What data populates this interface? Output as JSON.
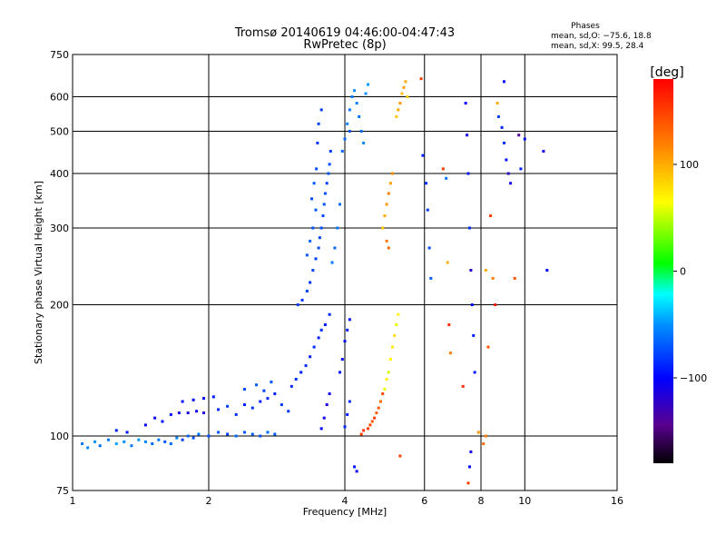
{
  "chart_data": {
    "type": "scatter",
    "title": "Tromsø 20140619 04:46:00-04:47:43",
    "subtitle": "RwPretec (8p)",
    "xlabel": "Frequency [MHz]",
    "ylabel": "Stationary phase Virtual Height [km]",
    "x_scale": "log",
    "y_scale": "log",
    "xlim": [
      1,
      16
    ],
    "ylim": [
      75,
      750
    ],
    "x_ticks": [
      1,
      2,
      4,
      6,
      8,
      10,
      16
    ],
    "y_ticks": [
      75,
      100,
      200,
      300,
      400,
      500,
      600,
      750
    ],
    "grid": true,
    "phase_stats": {
      "title": "Phases",
      "line_o": "mean, sd,O: −75.6, 18.8",
      "line_x": "mean, sd,X:  99.5, 28.4"
    },
    "colorbar": {
      "label": "[deg]",
      "ticks": [
        "100",
        "0",
        "−100"
      ],
      "tick_values": [
        100,
        0,
        -100
      ],
      "range": [
        -180,
        180
      ]
    },
    "series": [
      {
        "points": [
          [
            1.05,
            96,
            -60
          ],
          [
            1.08,
            94,
            -55
          ],
          [
            1.12,
            97,
            -50
          ],
          [
            1.15,
            95,
            -62
          ],
          [
            1.2,
            98,
            -58
          ],
          [
            1.25,
            96,
            -45
          ],
          [
            1.3,
            97,
            -52
          ],
          [
            1.35,
            95,
            -60
          ],
          [
            1.4,
            98,
            -48
          ],
          [
            1.45,
            97,
            -55
          ],
          [
            1.5,
            96,
            -65
          ],
          [
            1.55,
            98,
            -58
          ],
          [
            1.6,
            97,
            -70
          ],
          [
            1.65,
            96,
            -62
          ],
          [
            1.7,
            99,
            -55
          ],
          [
            1.75,
            98,
            -80
          ],
          [
            1.8,
            100,
            -66
          ],
          [
            1.85,
            99,
            -72
          ],
          [
            1.9,
            101,
            -60
          ],
          [
            2.0,
            100,
            -75
          ],
          [
            2.1,
            102,
            -68
          ],
          [
            2.2,
            101,
            -80
          ],
          [
            2.3,
            100,
            -64
          ],
          [
            2.4,
            102,
            -70
          ],
          [
            2.5,
            101,
            -66
          ],
          [
            2.6,
            100,
            -74
          ],
          [
            2.7,
            102,
            -62
          ],
          [
            2.8,
            101,
            -70
          ],
          [
            1.25,
            103,
            -90
          ],
          [
            1.32,
            102,
            -95
          ],
          [
            1.45,
            106,
            -100
          ],
          [
            1.52,
            110,
            -105
          ],
          [
            1.58,
            108,
            -98
          ],
          [
            1.65,
            112,
            -102
          ],
          [
            1.72,
            113,
            -110
          ],
          [
            1.8,
            113,
            -112
          ],
          [
            1.88,
            114,
            -108
          ],
          [
            1.95,
            113,
            -115
          ],
          [
            1.75,
            120,
            -95
          ],
          [
            1.85,
            121,
            -98
          ],
          [
            1.95,
            122,
            -100
          ],
          [
            2.05,
            123,
            -92
          ],
          [
            2.1,
            115,
            -88
          ],
          [
            2.2,
            117,
            -80
          ],
          [
            2.3,
            112,
            -85
          ],
          [
            2.4,
            118,
            -90
          ],
          [
            2.5,
            116,
            -84
          ],
          [
            2.6,
            120,
            -92
          ],
          [
            2.7,
            122,
            -86
          ],
          [
            2.8,
            125,
            -90
          ],
          [
            2.9,
            118,
            -80
          ],
          [
            3.0,
            114,
            -82
          ],
          [
            2.4,
            128,
            -75
          ],
          [
            2.55,
            131,
            -72
          ],
          [
            2.65,
            127,
            -78
          ],
          [
            2.75,
            133,
            -70
          ],
          [
            3.05,
            130,
            -88
          ],
          [
            3.12,
            135,
            -85
          ],
          [
            3.2,
            140,
            -92
          ],
          [
            3.28,
            145,
            -86
          ],
          [
            3.35,
            152,
            -90
          ],
          [
            3.42,
            160,
            -84
          ],
          [
            3.5,
            168,
            -90
          ],
          [
            3.55,
            175,
            -86
          ],
          [
            3.62,
            180,
            -92
          ],
          [
            3.7,
            190,
            -88
          ],
          [
            3.15,
            200,
            -80
          ],
          [
            3.22,
            205,
            -84
          ],
          [
            3.3,
            215,
            -78
          ],
          [
            3.35,
            225,
            -82
          ],
          [
            3.4,
            240,
            -76
          ],
          [
            3.45,
            255,
            -80
          ],
          [
            3.5,
            270,
            -74
          ],
          [
            3.52,
            285,
            -78
          ],
          [
            3.55,
            300,
            -72
          ],
          [
            3.58,
            320,
            -76
          ],
          [
            3.6,
            340,
            -70
          ],
          [
            3.62,
            360,
            -74
          ],
          [
            3.65,
            380,
            -78
          ],
          [
            3.68,
            400,
            -72
          ],
          [
            3.7,
            420,
            -76
          ],
          [
            3.72,
            450,
            -80
          ],
          [
            3.48,
            470,
            -82
          ],
          [
            3.5,
            520,
            -78
          ],
          [
            3.55,
            560,
            -80
          ],
          [
            3.3,
            260,
            -70
          ],
          [
            3.35,
            280,
            -66
          ],
          [
            3.4,
            300,
            -72
          ],
          [
            3.45,
            330,
            -70
          ],
          [
            3.38,
            350,
            -75
          ],
          [
            3.42,
            380,
            -68
          ],
          [
            3.46,
            410,
            -72
          ],
          [
            3.75,
            250,
            -60
          ],
          [
            3.8,
            270,
            -64
          ],
          [
            3.85,
            300,
            -58
          ],
          [
            3.9,
            340,
            -62
          ],
          [
            4.05,
            520,
            -55
          ],
          [
            4.1,
            560,
            -60
          ],
          [
            4.15,
            600,
            -58
          ],
          [
            4.2,
            620,
            -52
          ],
          [
            4.25,
            580,
            -56
          ],
          [
            4.3,
            540,
            -60
          ],
          [
            4.35,
            500,
            -62
          ],
          [
            4.4,
            470,
            -54
          ],
          [
            4.45,
            610,
            -50
          ],
          [
            4.5,
            640,
            -48
          ],
          [
            3.95,
            450,
            -65
          ],
          [
            4.0,
            480,
            -62
          ],
          [
            4.1,
            500,
            -70
          ],
          [
            3.9,
            140,
            -95
          ],
          [
            3.95,
            150,
            -98
          ],
          [
            4.0,
            165,
            -100
          ],
          [
            4.05,
            175,
            -92
          ],
          [
            4.1,
            185,
            -96
          ],
          [
            4.0,
            105,
            -88
          ],
          [
            4.05,
            112,
            -92
          ],
          [
            4.1,
            120,
            -86
          ],
          [
            3.7,
            125,
            -108
          ],
          [
            3.65,
            118,
            -112
          ],
          [
            3.6,
            110,
            -105
          ],
          [
            3.55,
            104,
            -100
          ],
          [
            4.5,
            104,
            150
          ],
          [
            4.55,
            106,
            145
          ],
          [
            4.6,
            108,
            140
          ],
          [
            4.65,
            110,
            150
          ],
          [
            4.7,
            113,
            135
          ],
          [
            4.75,
            116,
            140
          ],
          [
            4.8,
            120,
            130
          ],
          [
            4.85,
            125,
            145
          ],
          [
            4.4,
            103,
            155
          ],
          [
            4.35,
            101,
            150
          ],
          [
            4.9,
            128,
            60
          ],
          [
            4.95,
            135,
            70
          ],
          [
            5.0,
            140,
            55
          ],
          [
            5.05,
            150,
            65
          ],
          [
            5.1,
            160,
            75
          ],
          [
            5.15,
            170,
            80
          ],
          [
            5.2,
            180,
            60
          ],
          [
            5.25,
            190,
            70
          ],
          [
            4.85,
            300,
            90
          ],
          [
            4.9,
            320,
            100
          ],
          [
            4.95,
            340,
            110
          ],
          [
            5.0,
            360,
            120
          ],
          [
            5.05,
            380,
            105
          ],
          [
            5.1,
            400,
            115
          ],
          [
            4.95,
            280,
            125
          ],
          [
            5.0,
            270,
            130
          ],
          [
            5.2,
            540,
            90
          ],
          [
            5.25,
            560,
            100
          ],
          [
            5.3,
            580,
            110
          ],
          [
            5.35,
            610,
            95
          ],
          [
            5.4,
            630,
            105
          ],
          [
            5.45,
            650,
            100
          ],
          [
            5.5,
            600,
            85
          ],
          [
            5.95,
            440,
            -90
          ],
          [
            6.05,
            380,
            -85
          ],
          [
            6.1,
            330,
            -80
          ],
          [
            6.15,
            270,
            -75
          ],
          [
            6.2,
            230,
            -70
          ],
          [
            5.9,
            660,
            150
          ],
          [
            6.6,
            410,
            150
          ],
          [
            6.7,
            390,
            -60
          ],
          [
            6.75,
            250,
            100
          ],
          [
            6.8,
            180,
            160
          ],
          [
            6.85,
            155,
            120
          ],
          [
            7.4,
            580,
            -100
          ],
          [
            7.45,
            490,
            -110
          ],
          [
            7.5,
            400,
            -95
          ],
          [
            7.55,
            300,
            -85
          ],
          [
            7.6,
            240,
            -120
          ],
          [
            7.65,
            200,
            -100
          ],
          [
            7.7,
            170,
            -90
          ],
          [
            7.75,
            140,
            -95
          ],
          [
            7.6,
            92,
            -110
          ],
          [
            7.55,
            85,
            -100
          ],
          [
            7.5,
            78,
            150
          ],
          [
            7.3,
            130,
            160
          ],
          [
            8.3,
            160,
            140
          ],
          [
            8.4,
            320,
            150
          ],
          [
            8.5,
            230,
            120
          ],
          [
            8.6,
            200,
            170
          ],
          [
            8.2,
            240,
            100
          ],
          [
            8.7,
            580,
            100
          ],
          [
            8.75,
            540,
            -80
          ],
          [
            8.9,
            510,
            -90
          ],
          [
            9.0,
            470,
            -85
          ],
          [
            9.1,
            430,
            -95
          ],
          [
            9.2,
            400,
            -120
          ],
          [
            9.3,
            380,
            -110
          ],
          [
            9.0,
            650,
            -100
          ],
          [
            8.1,
            96,
            130
          ],
          [
            8.2,
            100,
            120
          ],
          [
            7.9,
            102,
            110
          ],
          [
            9.5,
            230,
            140
          ],
          [
            9.7,
            490,
            -140
          ],
          [
            10.0,
            480,
            -100
          ],
          [
            9.8,
            410,
            -90
          ],
          [
            11.0,
            450,
            -110
          ],
          [
            11.2,
            240,
            -100
          ],
          [
            4.2,
            85,
            -95
          ],
          [
            4.25,
            83,
            -100
          ],
          [
            5.3,
            90,
            150
          ]
        ]
      }
    ]
  }
}
